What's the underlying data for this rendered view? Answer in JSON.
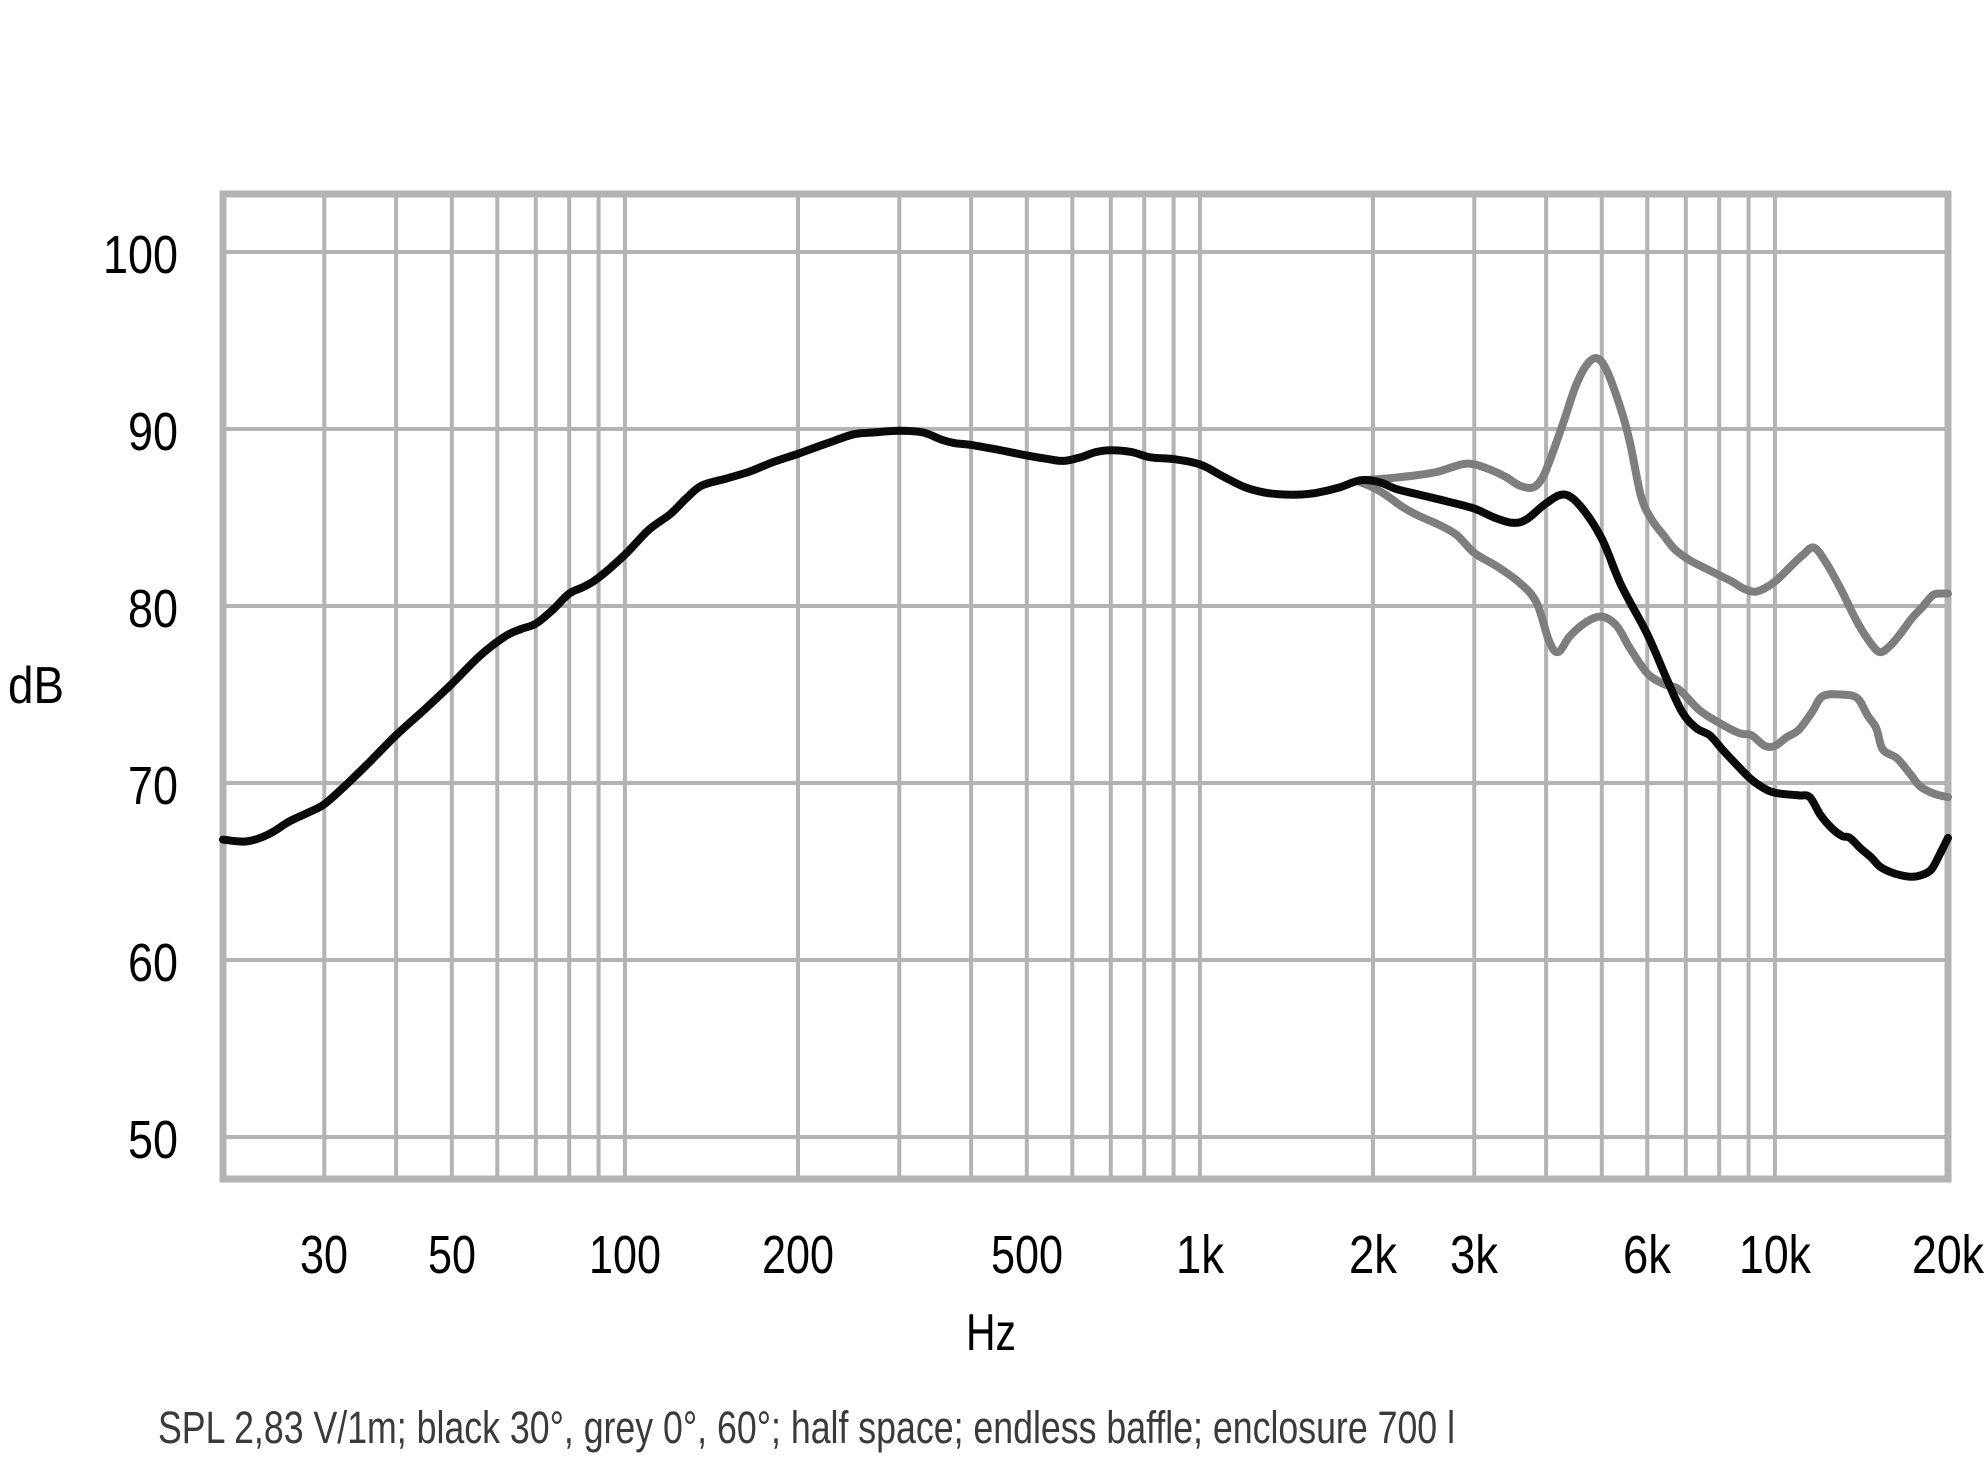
{
  "chart_data": {
    "type": "line",
    "caption": "SPL 2,83 V/1m; black 30°, grey 0°, 60°; half space; endless baffle; enclosure 700 l",
    "xlabel": "Hz",
    "ylabel": "dB",
    "x_scale": "log",
    "x_range_hz": [
      20,
      20000
    ],
    "y_range_db": [
      47.6,
      103.3
    ],
    "grid": true,
    "legend_position": "none",
    "y_gridlines_db": [
      50,
      60,
      70,
      80,
      90,
      100
    ],
    "y_ticks": [
      {
        "db": 100,
        "label": "100"
      },
      {
        "db": 90,
        "label": "90"
      },
      {
        "db": 80,
        "label": "80"
      },
      {
        "db": 70,
        "label": "70"
      },
      {
        "db": 60,
        "label": "60"
      },
      {
        "db": 50,
        "label": "50"
      }
    ],
    "x_gridlines_hz": [
      30,
      40,
      50,
      60,
      70,
      80,
      90,
      100,
      200,
      300,
      400,
      500,
      600,
      700,
      800,
      900,
      1000,
      2000,
      3000,
      4000,
      5000,
      6000,
      7000,
      8000,
      9000,
      10000
    ],
    "x_ticks": [
      {
        "hz": 30,
        "label": "30"
      },
      {
        "hz": 50,
        "label": "50"
      },
      {
        "hz": 100,
        "label": "100"
      },
      {
        "hz": 200,
        "label": "200"
      },
      {
        "hz": 500,
        "label": "500"
      },
      {
        "hz": 1000,
        "label": "1k"
      },
      {
        "hz": 2000,
        "label": "2k"
      },
      {
        "hz": 3000,
        "label": "3k"
      },
      {
        "hz": 6000,
        "label": "6k"
      },
      {
        "hz": 10000,
        "label": "10k"
      },
      {
        "hz": 20000,
        "label": "20k"
      }
    ],
    "colors": {
      "black_curve": "#0a0a0a",
      "grey_curve": "#7e7e7e",
      "grid": "#b3b3b3",
      "caption_text": "#3a3a3a",
      "label_text": "#000000"
    },
    "series": [
      {
        "name": "30 degrees (black)",
        "color_role": "black",
        "points": [
          [
            20,
            66.8
          ],
          [
            22,
            66.7
          ],
          [
            24,
            67.1
          ],
          [
            26,
            67.8
          ],
          [
            28,
            68.3
          ],
          [
            30,
            68.8
          ],
          [
            33,
            70.0
          ],
          [
            36,
            71.2
          ],
          [
            40,
            72.7
          ],
          [
            45,
            74.2
          ],
          [
            50,
            75.6
          ],
          [
            56,
            77.2
          ],
          [
            62,
            78.3
          ],
          [
            66,
            78.7
          ],
          [
            70,
            79.0
          ],
          [
            75,
            79.8
          ],
          [
            80,
            80.7
          ],
          [
            85,
            81.1
          ],
          [
            90,
            81.6
          ],
          [
            100,
            82.9
          ],
          [
            110,
            84.3
          ],
          [
            120,
            85.2
          ],
          [
            128,
            86.1
          ],
          [
            136,
            86.8
          ],
          [
            150,
            87.2
          ],
          [
            165,
            87.6
          ],
          [
            180,
            88.1
          ],
          [
            200,
            88.6
          ],
          [
            225,
            89.2
          ],
          [
            250,
            89.7
          ],
          [
            270,
            89.8
          ],
          [
            300,
            89.9
          ],
          [
            330,
            89.8
          ],
          [
            355,
            89.4
          ],
          [
            375,
            89.2
          ],
          [
            400,
            89.1
          ],
          [
            450,
            88.8
          ],
          [
            500,
            88.5
          ],
          [
            545,
            88.3
          ],
          [
            580,
            88.2
          ],
          [
            620,
            88.4
          ],
          [
            660,
            88.7
          ],
          [
            700,
            88.8
          ],
          [
            760,
            88.7
          ],
          [
            820,
            88.4
          ],
          [
            900,
            88.3
          ],
          [
            1000,
            88.0
          ],
          [
            1100,
            87.3
          ],
          [
            1200,
            86.7
          ],
          [
            1300,
            86.4
          ],
          [
            1400,
            86.3
          ],
          [
            1500,
            86.3
          ],
          [
            1600,
            86.4
          ],
          [
            1750,
            86.7
          ],
          [
            1900,
            87.1
          ],
          [
            2050,
            87.0
          ],
          [
            2200,
            86.6
          ],
          [
            2400,
            86.3
          ],
          [
            2700,
            85.9
          ],
          [
            3000,
            85.5
          ],
          [
            3250,
            85.0
          ],
          [
            3500,
            84.7
          ],
          [
            3700,
            84.9
          ],
          [
            4000,
            85.8
          ],
          [
            4300,
            86.3
          ],
          [
            4600,
            85.6
          ],
          [
            5000,
            83.8
          ],
          [
            5400,
            81.2
          ],
          [
            6000,
            78.4
          ],
          [
            6500,
            75.8
          ],
          [
            6900,
            74.0
          ],
          [
            7300,
            73.1
          ],
          [
            7700,
            72.7
          ],
          [
            8100,
            71.9
          ],
          [
            8600,
            71.0
          ],
          [
            9100,
            70.2
          ],
          [
            9700,
            69.6
          ],
          [
            10200,
            69.4
          ],
          [
            11000,
            69.3
          ],
          [
            11500,
            69.2
          ],
          [
            12000,
            68.2
          ],
          [
            12600,
            67.4
          ],
          [
            13100,
            67.0
          ],
          [
            13500,
            66.9
          ],
          [
            14100,
            66.3
          ],
          [
            14700,
            65.8
          ],
          [
            15200,
            65.3
          ],
          [
            15800,
            65.0
          ],
          [
            16500,
            64.8
          ],
          [
            17300,
            64.7
          ],
          [
            18000,
            64.8
          ],
          [
            18700,
            65.1
          ],
          [
            19300,
            65.9
          ],
          [
            20000,
            66.9
          ]
        ]
      },
      {
        "name": "0 degrees (grey)",
        "color_role": "grey",
        "points": [
          [
            1900,
            87.1
          ],
          [
            2100,
            87.2
          ],
          [
            2400,
            87.4
          ],
          [
            2600,
            87.6
          ],
          [
            2850,
            88.0
          ],
          [
            3000,
            88.0
          ],
          [
            3200,
            87.7
          ],
          [
            3400,
            87.3
          ],
          [
            3600,
            86.8
          ],
          [
            3800,
            86.7
          ],
          [
            3950,
            87.3
          ],
          [
            4100,
            88.6
          ],
          [
            4300,
            90.5
          ],
          [
            4500,
            92.4
          ],
          [
            4700,
            93.6
          ],
          [
            4900,
            94.0
          ],
          [
            5100,
            93.3
          ],
          [
            5400,
            91.1
          ],
          [
            5600,
            89.2
          ],
          [
            5850,
            86.2
          ],
          [
            6100,
            84.9
          ],
          [
            6400,
            84.0
          ],
          [
            6700,
            83.2
          ],
          [
            7100,
            82.6
          ],
          [
            7600,
            82.1
          ],
          [
            8400,
            81.4
          ],
          [
            8800,
            81.0
          ],
          [
            9200,
            80.8
          ],
          [
            9600,
            81.0
          ],
          [
            10100,
            81.5
          ],
          [
            10700,
            82.3
          ],
          [
            11200,
            82.9
          ],
          [
            11700,
            83.3
          ],
          [
            12300,
            82.4
          ],
          [
            13000,
            81.0
          ],
          [
            13900,
            79.1
          ],
          [
            14600,
            78.0
          ],
          [
            15200,
            77.4
          ],
          [
            15800,
            77.7
          ],
          [
            16500,
            78.4
          ],
          [
            17300,
            79.3
          ],
          [
            18000,
            79.9
          ],
          [
            18800,
            80.6
          ],
          [
            19400,
            80.7
          ],
          [
            20000,
            80.7
          ]
        ]
      },
      {
        "name": "60 degrees (grey)",
        "color_role": "grey",
        "points": [
          [
            1900,
            87.0
          ],
          [
            2000,
            86.7
          ],
          [
            2100,
            86.3
          ],
          [
            2250,
            85.6
          ],
          [
            2400,
            85.1
          ],
          [
            2600,
            84.6
          ],
          [
            2800,
            84.0
          ],
          [
            3000,
            83.0
          ],
          [
            3300,
            82.2
          ],
          [
            3600,
            81.3
          ],
          [
            3850,
            80.2
          ],
          [
            4050,
            78.0
          ],
          [
            4200,
            77.4
          ],
          [
            4400,
            78.3
          ],
          [
            4700,
            79.1
          ],
          [
            5000,
            79.4
          ],
          [
            5300,
            78.9
          ],
          [
            5600,
            77.6
          ],
          [
            6000,
            76.2
          ],
          [
            6400,
            75.6
          ],
          [
            6800,
            75.3
          ],
          [
            7400,
            74.1
          ],
          [
            8100,
            73.3
          ],
          [
            8700,
            72.8
          ],
          [
            9100,
            72.7
          ],
          [
            9600,
            72.1
          ],
          [
            10000,
            72.1
          ],
          [
            10500,
            72.6
          ],
          [
            11000,
            73.0
          ],
          [
            11600,
            74.0
          ],
          [
            12100,
            74.9
          ],
          [
            13000,
            75.0
          ],
          [
            13900,
            74.8
          ],
          [
            14500,
            73.8
          ],
          [
            15000,
            73.1
          ],
          [
            15400,
            71.9
          ],
          [
            16300,
            71.4
          ],
          [
            17200,
            70.5
          ],
          [
            17900,
            69.8
          ],
          [
            18900,
            69.4
          ],
          [
            20000,
            69.2
          ]
        ]
      }
    ]
  }
}
